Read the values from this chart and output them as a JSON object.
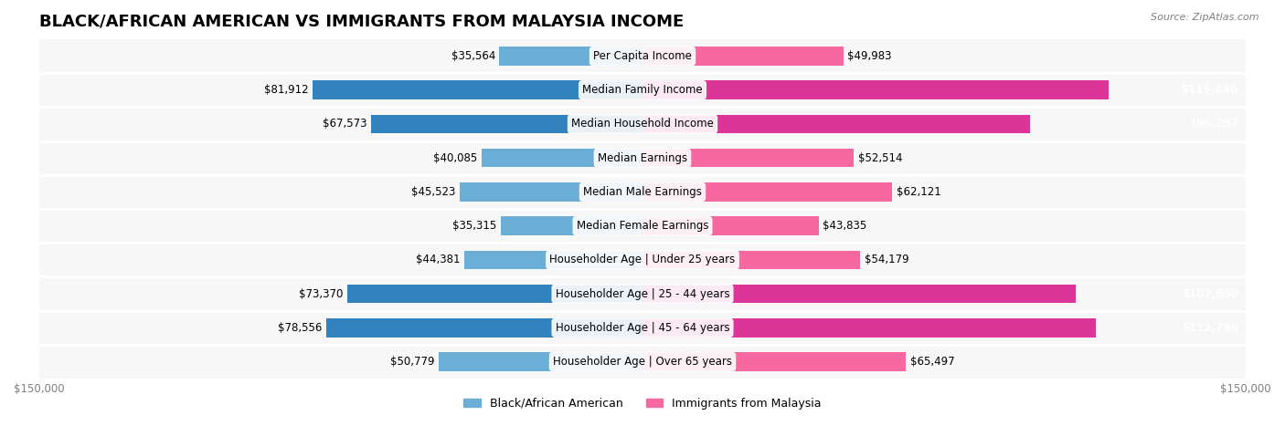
{
  "title": "BLACK/AFRICAN AMERICAN VS IMMIGRANTS FROM MALAYSIA INCOME",
  "source": "Source: ZipAtlas.com",
  "categories": [
    "Per Capita Income",
    "Median Family Income",
    "Median Household Income",
    "Median Earnings",
    "Median Male Earnings",
    "Median Female Earnings",
    "Householder Age | Under 25 years",
    "Householder Age | 25 - 44 years",
    "Householder Age | 45 - 64 years",
    "Householder Age | Over 65 years"
  ],
  "black_values": [
    35564,
    81912,
    67573,
    40085,
    45523,
    35315,
    44381,
    73370,
    78556,
    50779
  ],
  "malaysia_values": [
    49983,
    115880,
    96292,
    52514,
    62121,
    43835,
    54179,
    107650,
    112796,
    65497
  ],
  "black_color": "#6baed6",
  "malaysia_color": "#f768a1",
  "black_color_dark": "#3182bd",
  "malaysia_color_dark": "#dd3497",
  "black_label": "Black/African American",
  "malaysia_label": "Immigrants from Malaysia",
  "max_val": 150000,
  "row_bg_color": "#f0f0f0",
  "bar_height": 0.55,
  "label_fontsize": 8.5,
  "value_fontsize": 8.5,
  "title_fontsize": 13,
  "axis_label_fontsize": 8.5
}
